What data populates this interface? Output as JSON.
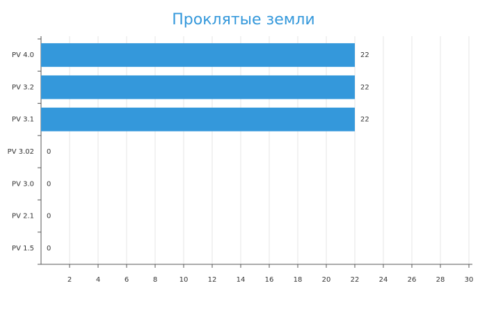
{
  "chart_data": {
    "type": "bar",
    "orientation": "horizontal",
    "title": "Проклятые земли",
    "categories": [
      "PV 4.0",
      "PV 3.2",
      "PV 3.1",
      "PV 3.02",
      "PV 3.0",
      "PV 2.1",
      "PV 1.5"
    ],
    "values": [
      22,
      22,
      22,
      0,
      0,
      0,
      0
    ],
    "color": "#3498db",
    "xlim": [
      0,
      30
    ],
    "xticks": [
      2,
      4,
      6,
      8,
      10,
      12,
      14,
      16,
      18,
      20,
      22,
      24,
      26,
      28,
      30
    ],
    "grid": true
  }
}
